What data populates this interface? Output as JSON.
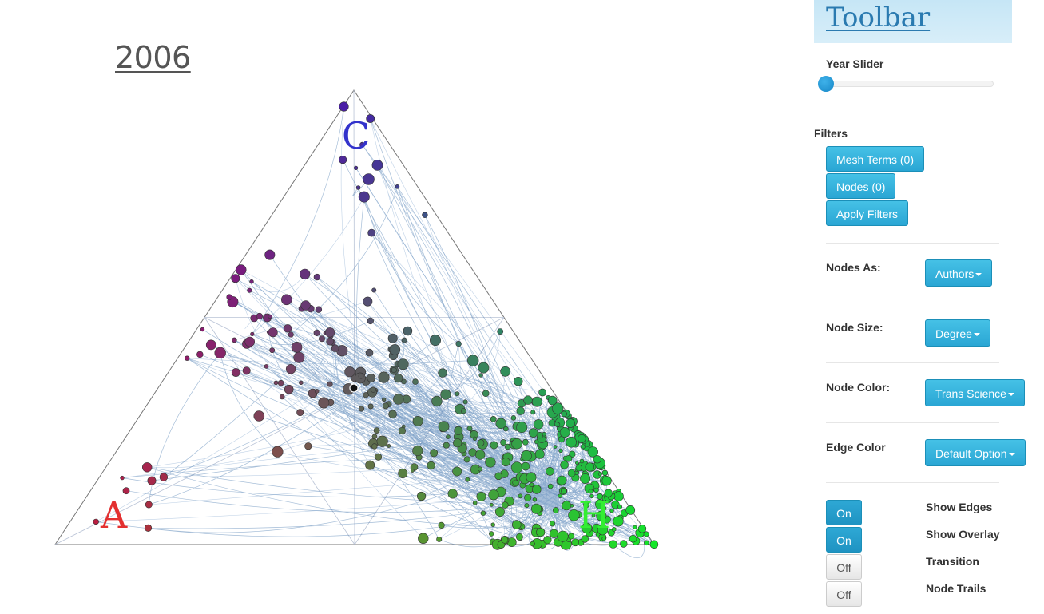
{
  "year": "2006",
  "corners": {
    "c": {
      "label": "C",
      "color": "#3333cc"
    },
    "a": {
      "label": "A",
      "color": "#e33030"
    },
    "h": {
      "label": "H",
      "color": "#33ee33"
    }
  },
  "toolbar": {
    "title": "Toolbar",
    "year_slider_label": "Year Slider",
    "year_slider_value": 0,
    "filters_label": "Filters",
    "mesh_terms_button": "Mesh Terms (0)",
    "nodes_button": "Nodes (0)",
    "apply_filters_button": "Apply Filters",
    "nodes_as": {
      "label": "Nodes As:",
      "value": "Authors"
    },
    "node_size": {
      "label": "Node Size:",
      "value": "Degree"
    },
    "node_color": {
      "label": "Node Color:",
      "value": "Trans Science"
    },
    "edge_color": {
      "label": "Edge Color",
      "value": "Default Option"
    },
    "toggles": [
      {
        "label": "Show Edges",
        "state": "On"
      },
      {
        "label": "Show Overlay",
        "state": "On"
      },
      {
        "label": "Transition",
        "state": "Off"
      },
      {
        "label": "Node Trails",
        "state": "Off"
      }
    ]
  },
  "colors": {
    "accent": "#2aa6d4",
    "edge": "#3a6fa8"
  }
}
